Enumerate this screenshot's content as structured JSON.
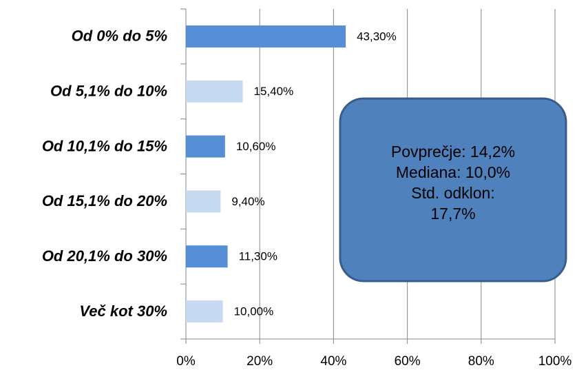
{
  "chart_data": {
    "type": "bar",
    "orientation": "horizontal",
    "categories": [
      "Od 0% do 5%",
      "Od 5,1% do 10%",
      "Od 10,1% do 15%",
      "Od 15,1% do 20%",
      "Od 20,1% do 30%",
      "Več kot 30%"
    ],
    "values": [
      43.3,
      15.4,
      10.6,
      9.4,
      11.3,
      10.0
    ],
    "value_labels": [
      "43,30%",
      "15,40%",
      "10,60%",
      "9,40%",
      "11,30%",
      "10,00%"
    ],
    "colors": [
      "#558ed5",
      "#c6d9f1",
      "#558ed5",
      "#c6d9f1",
      "#558ed5",
      "#c6d9f1"
    ],
    "xlim": [
      0,
      100
    ],
    "xticks": [
      {
        "value": 0,
        "label": "0%"
      },
      {
        "value": 20,
        "label": "20%"
      },
      {
        "value": 40,
        "label": "40%"
      },
      {
        "value": 60,
        "label": "60%"
      },
      {
        "value": 80,
        "label": "80%"
      },
      {
        "value": 100,
        "label": "100%"
      }
    ],
    "grid": true,
    "annotation": [
      "Povprečje: 14,2%",
      "Mediana: 10,0%",
      "Std. odklon:",
      "17,7%"
    ]
  }
}
